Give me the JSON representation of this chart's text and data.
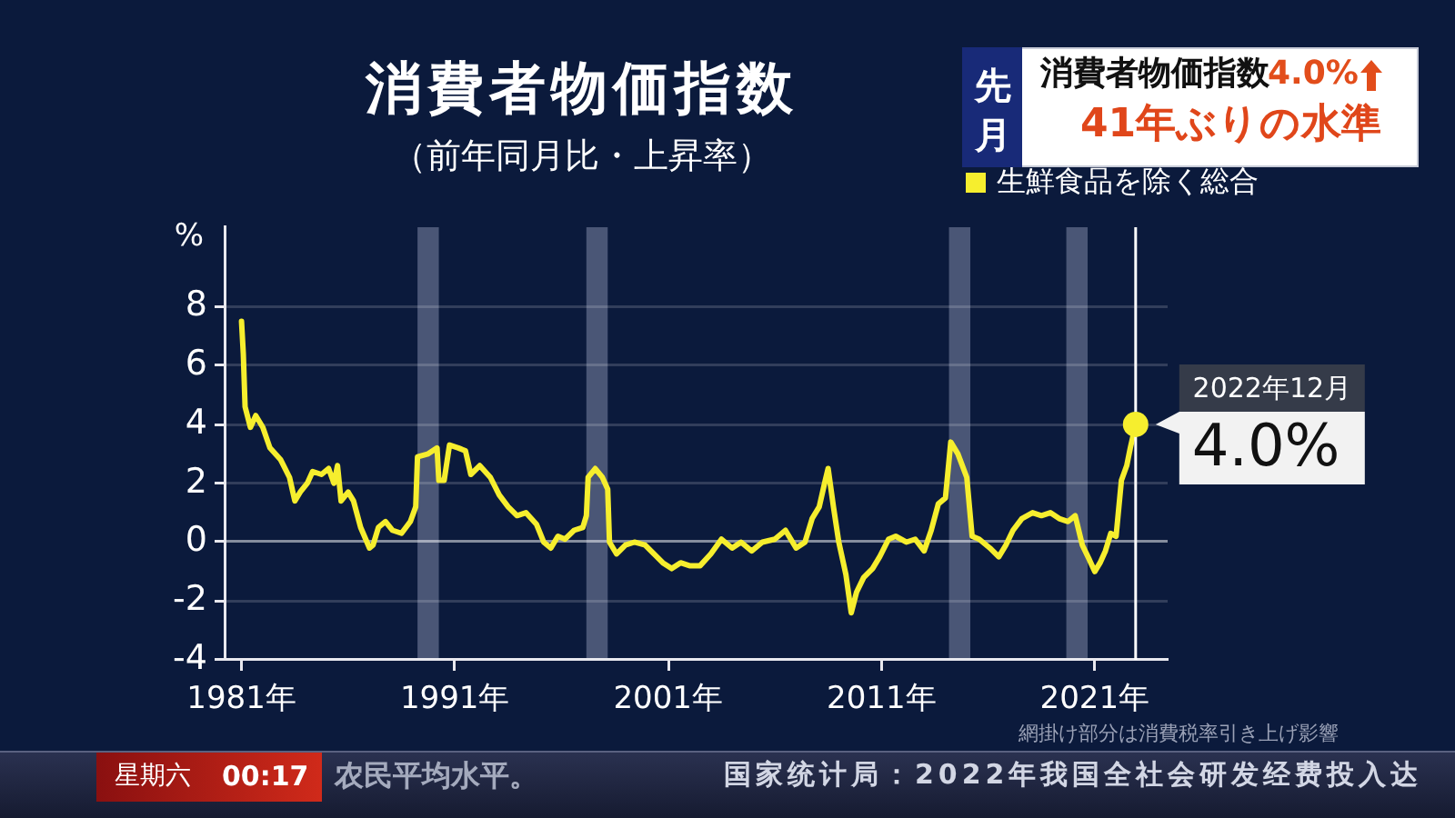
{
  "chart_data": {
    "type": "line",
    "title": "消費者物価指数",
    "subtitle": "（前年同月比・上昇率）",
    "ylabel": "%",
    "x": [
      "1981-01",
      "1981-02",
      "1981-03",
      "1981-06",
      "1981-09",
      "1982-01",
      "1982-05",
      "1982-11",
      "1983-04",
      "1983-07",
      "1983-10",
      "1984-02",
      "1984-05",
      "1984-10",
      "1985-02",
      "1985-05",
      "1985-07",
      "1985-09",
      "1986-01",
      "1986-04",
      "1986-08",
      "1987-01",
      "1987-03",
      "1987-06",
      "1987-10",
      "1988-02",
      "1988-07",
      "1988-12",
      "1989-03",
      "1989-04",
      "1989-10",
      "1990-03",
      "1990-04",
      "1990-07",
      "1990-10",
      "1991-03",
      "1991-07",
      "1991-10",
      "1992-03",
      "1992-09",
      "1993-02",
      "1993-07",
      "1993-12",
      "1994-05",
      "1994-11",
      "1995-03",
      "1995-07",
      "1995-11",
      "1996-03",
      "1996-08",
      "1997-01",
      "1997-03",
      "1997-04",
      "1997-08",
      "1997-12",
      "1998-03",
      "1998-04",
      "1998-08",
      "1999-01",
      "1999-06",
      "1999-12",
      "2000-05",
      "2000-10",
      "2001-03",
      "2001-08",
      "2002-01",
      "2002-07",
      "2003-01",
      "2003-07",
      "2004-01",
      "2004-06",
      "2004-12",
      "2005-06",
      "2006-01",
      "2006-07",
      "2007-01",
      "2007-06",
      "2007-10",
      "2008-02",
      "2008-05",
      "2008-07",
      "2008-10",
      "2009-01",
      "2009-05",
      "2009-08",
      "2009-11",
      "2010-03",
      "2010-08",
      "2010-12",
      "2011-05",
      "2011-09",
      "2012-03",
      "2012-08",
      "2013-01",
      "2013-05",
      "2013-09",
      "2014-01",
      "2014-04",
      "2014-08",
      "2015-01",
      "2015-04",
      "2015-08",
      "2016-02",
      "2016-07",
      "2016-11",
      "2017-03",
      "2017-08",
      "2018-02",
      "2018-07",
      "2018-12",
      "2019-05",
      "2019-10",
      "2020-02",
      "2020-06",
      "2020-10",
      "2021-01",
      "2021-04",
      "2021-07",
      "2021-10",
      "2022-01",
      "2022-04",
      "2022-07",
      "2022-09",
      "2022-12"
    ],
    "series": [
      {
        "name": "生鮮食品を除く総合",
        "color": "#f6ee2e",
        "values": [
          7.5,
          6.4,
          4.6,
          3.9,
          4.3,
          3.9,
          3.2,
          2.8,
          2.2,
          1.4,
          1.7,
          2.0,
          2.4,
          2.3,
          2.5,
          2.0,
          2.6,
          1.4,
          1.7,
          1.4,
          0.5,
          -0.2,
          -0.1,
          0.5,
          0.7,
          0.4,
          0.3,
          0.7,
          1.2,
          2.9,
          3.0,
          3.2,
          2.1,
          2.1,
          3.3,
          3.2,
          3.1,
          2.3,
          2.6,
          2.2,
          1.6,
          1.2,
          0.9,
          1.0,
          0.6,
          0.0,
          -0.2,
          0.2,
          0.1,
          0.4,
          0.5,
          0.9,
          2.2,
          2.5,
          2.2,
          1.8,
          0.0,
          -0.4,
          -0.1,
          0.0,
          -0.1,
          -0.4,
          -0.7,
          -0.9,
          -0.7,
          -0.8,
          -0.8,
          -0.4,
          0.1,
          -0.2,
          0.0,
          -0.3,
          0.0,
          0.1,
          0.4,
          -0.2,
          0.0,
          0.8,
          1.2,
          2.0,
          2.5,
          1.2,
          0.0,
          -1.1,
          -2.4,
          -1.7,
          -1.2,
          -0.9,
          -0.5,
          0.1,
          0.2,
          0.0,
          0.1,
          -0.3,
          0.4,
          1.3,
          1.5,
          3.4,
          3.0,
          2.2,
          0.2,
          0.1,
          -0.2,
          -0.5,
          -0.1,
          0.4,
          0.8,
          1.0,
          0.9,
          1.0,
          0.8,
          0.7,
          0.9,
          -0.1,
          -0.6,
          -1.0,
          -0.7,
          -0.3,
          0.3,
          0.2,
          2.1,
          2.6,
          3.2,
          4.0
        ]
      }
    ],
    "xlim": [
      "1980-04",
      "2024-06"
    ],
    "xticks": [
      {
        "value": "1981-01",
        "label": "1981年"
      },
      {
        "value": "1991-01",
        "label": "1991年"
      },
      {
        "value": "2001-01",
        "label": "2001年"
      },
      {
        "value": "2011-01",
        "label": "2011年"
      },
      {
        "value": "2021-01",
        "label": "2021年"
      }
    ],
    "ylim": [
      -4,
      10.7
    ],
    "yticks": [
      -4,
      -2,
      0,
      2,
      4,
      6,
      8
    ],
    "grid": "y",
    "legend": "top right",
    "bands": [
      {
        "axis": "x",
        "from": "1989-04",
        "to": "1990-04",
        "color": "#4a5676"
      },
      {
        "axis": "x",
        "from": "1997-03",
        "to": "1998-03",
        "color": "#4a5676"
      },
      {
        "axis": "x",
        "from": "2014-03",
        "to": "2015-03",
        "color": "#4a5676"
      },
      {
        "axis": "x",
        "from": "2019-09",
        "to": "2020-09",
        "color": "#4a5676"
      }
    ],
    "ref_lines": [
      {
        "axis": "x",
        "value": "2022-12",
        "label": "2022年12月",
        "color": "#ffffff"
      }
    ],
    "annotations": [
      {
        "text": "4.0%",
        "x": "2022-12",
        "y": 4.0
      },
      "先月",
      "消費者物価指数",
      "4.0%",
      "41年ぶりの水準",
      "網掛け部分は消費税率引き上げ影響",
      "星期六",
      "00:17",
      "农民平均水平。",
      "国家统计局：2022年我国全社会研发经费投入达"
    ]
  }
}
